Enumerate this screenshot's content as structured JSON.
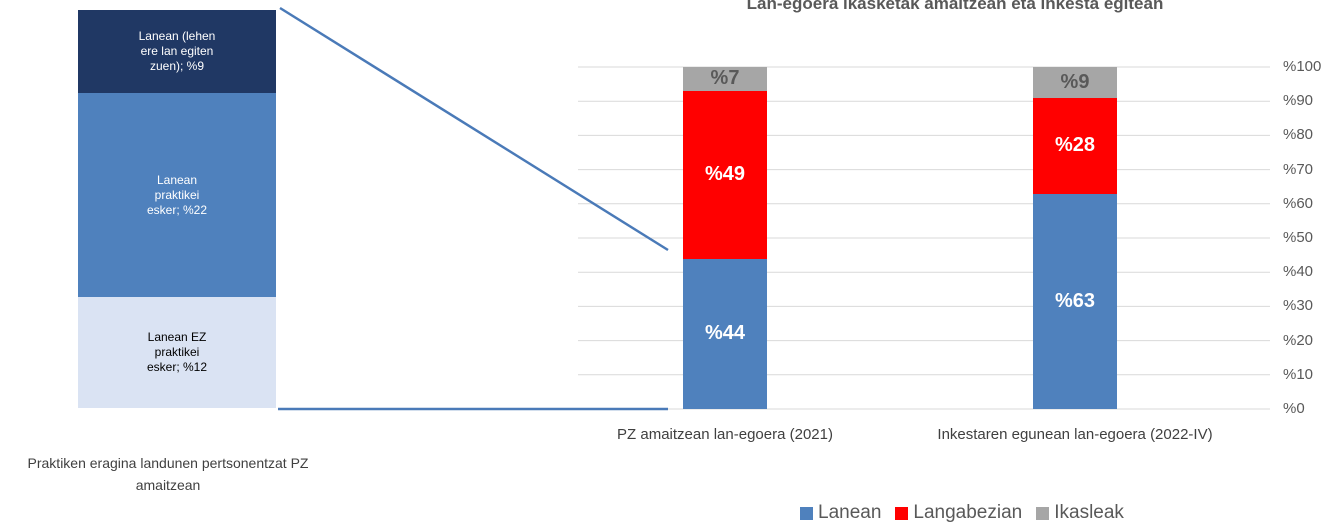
{
  "chart_data": [
    {
      "type": "bar",
      "stacked": true,
      "categories": [
        "Praktiken eragina landunen pertsonentzat PZ amaitzean"
      ],
      "series": [
        {
          "color": "#dae3f3",
          "values": [
            12
          ],
          "value_labels": [
            "Lanean EZ praktikei esker; %12"
          ]
        },
        {
          "color": "#4f81bd",
          "values": [
            22
          ],
          "value_labels": [
            "Lanean praktikei esker; %22"
          ]
        },
        {
          "color": "#203864",
          "values": [
            9
          ],
          "value_labels": [
            "Lanean (lehen ere lan egiten zuen); %9"
          ]
        }
      ],
      "ylim": [
        0,
        43
      ]
    },
    {
      "type": "bar",
      "stacked": true,
      "title": "Lan-egoera ikasketak amaitzean eta inkesta egitean",
      "categories": [
        "PZ amaitzean lan-egoera (2021)",
        "Inkestaren egunean lan-egoera (2022-IV)"
      ],
      "series": [
        {
          "name": "Lanean",
          "color": "#4f81bd",
          "values": [
            44,
            63
          ],
          "value_labels": [
            "%44",
            "%63"
          ]
        },
        {
          "name": "Langabezian",
          "color": "#ff0000",
          "values": [
            49,
            28
          ],
          "value_labels": [
            "%49",
            "%28"
          ]
        },
        {
          "name": "Ikasleak",
          "color": "#a6a6a6",
          "values": [
            7,
            9
          ],
          "value_labels": [
            "%7",
            "%9"
          ]
        }
      ],
      "ylim": [
        0,
        100
      ],
      "yticks": [
        {
          "value": 0,
          "label": "%0"
        },
        {
          "value": 10,
          "label": "%10"
        },
        {
          "value": 20,
          "label": "%20"
        },
        {
          "value": 30,
          "label": "%30"
        },
        {
          "value": 40,
          "label": "%40"
        },
        {
          "value": 50,
          "label": "%50"
        },
        {
          "value": 60,
          "label": "%60"
        },
        {
          "value": 70,
          "label": "%70"
        },
        {
          "value": 80,
          "label": "%80"
        },
        {
          "value": 90,
          "label": "%90"
        },
        {
          "value": 100,
          "label": "%100"
        }
      ],
      "grid": true,
      "legend": "bottom"
    }
  ]
}
